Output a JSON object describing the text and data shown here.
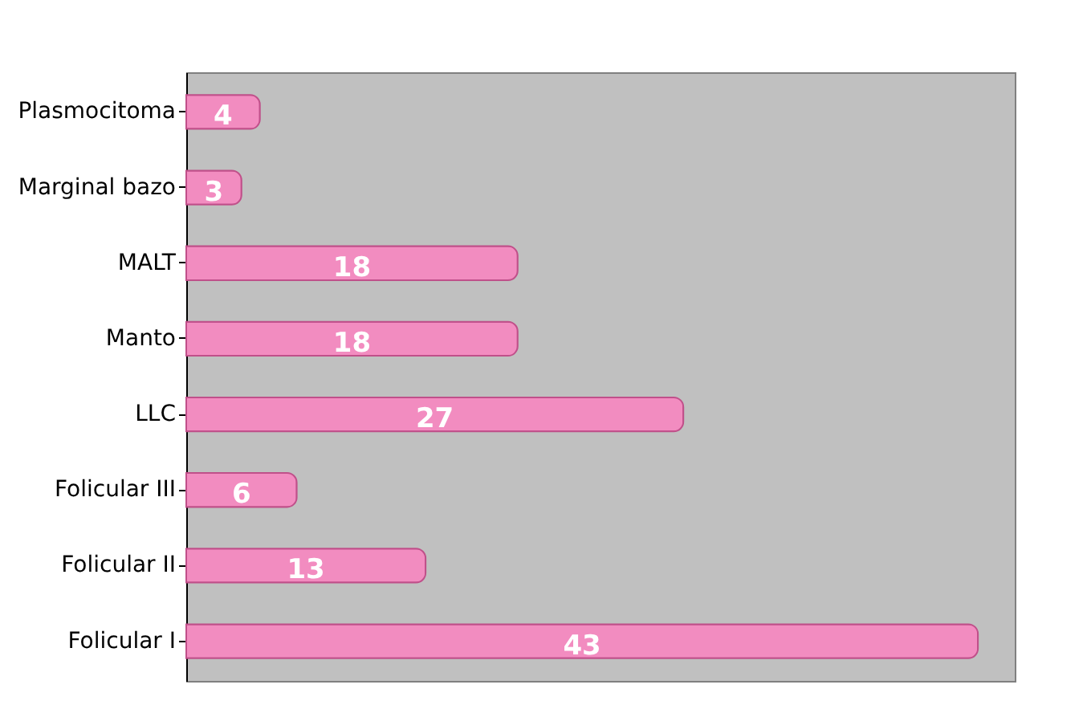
{
  "chart_data": {
    "type": "bar",
    "orientation": "horizontal",
    "categories": [
      "Plasmocitoma",
      "Marginal bazo",
      "MALT",
      "Manto",
      "LLC",
      "Folicular III",
      "Folicular II",
      "Folicular I"
    ],
    "values": [
      4,
      3,
      18,
      18,
      27,
      6,
      13,
      43
    ],
    "color": "#f28cc0",
    "data_labels": true
  }
}
